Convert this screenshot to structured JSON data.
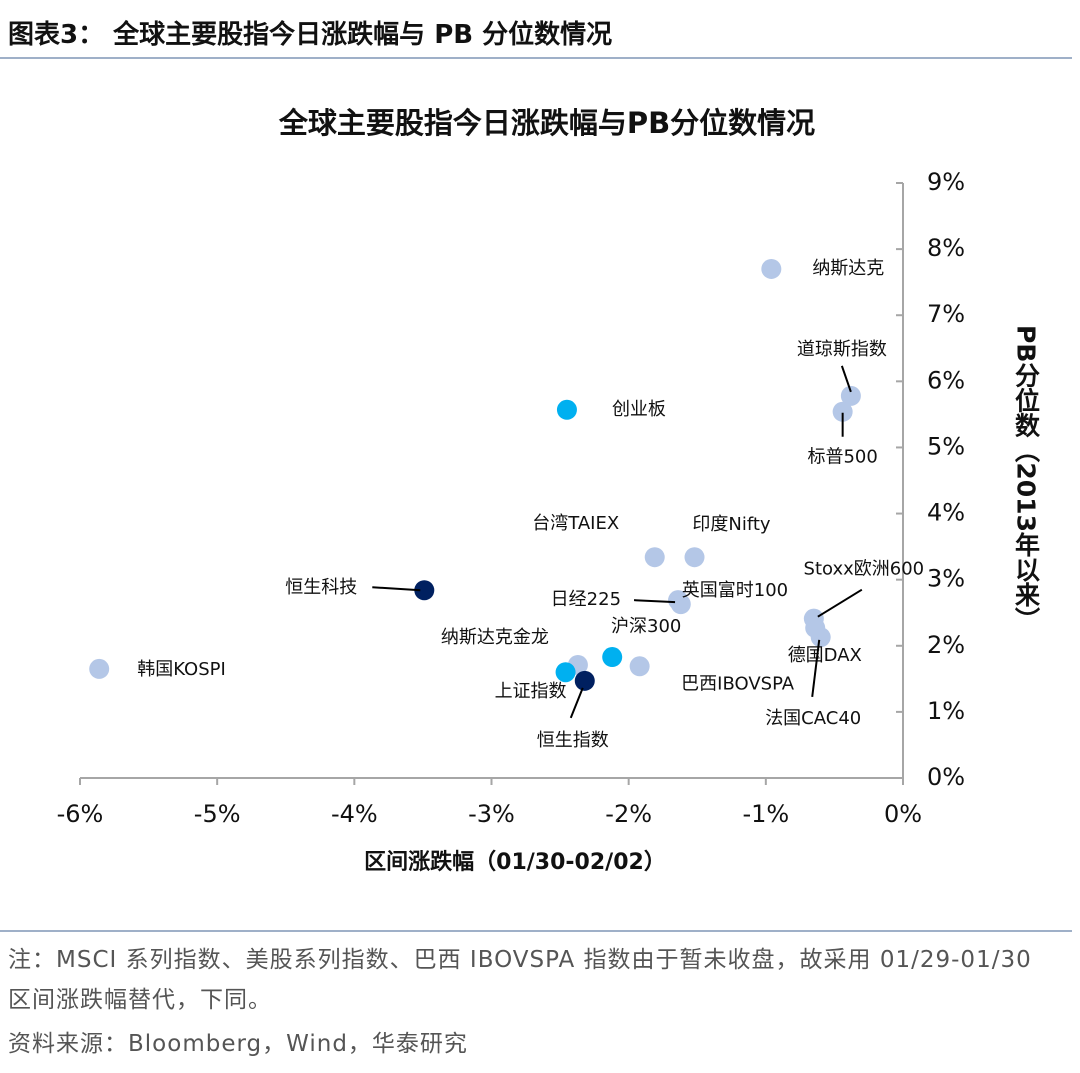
{
  "header": {
    "title": "图表3：  全球主要股指今日涨跌幅与 PB 分位数情况"
  },
  "chart_data": {
    "type": "scatter",
    "title": "全球主要股指今日涨跌幅与PB分位数情况",
    "x_label": "区间涨跌幅（01/30-02/02）",
    "y_label": "PB分位数（2013年以来）",
    "xlim": [
      -6,
      0
    ],
    "ylim": [
      0,
      9
    ],
    "xticks": [
      {
        "value": -6,
        "label": "-6%"
      },
      {
        "value": -5,
        "label": "-5%"
      },
      {
        "value": -4,
        "label": "-4%"
      },
      {
        "value": -3,
        "label": "-3%"
      },
      {
        "value": -2,
        "label": "-2%"
      },
      {
        "value": -1,
        "label": "-1%"
      },
      {
        "value": 0,
        "label": "0%"
      }
    ],
    "yticks": [
      {
        "value": 0,
        "label": "0%"
      },
      {
        "value": 1,
        "label": "1%"
      },
      {
        "value": 2,
        "label": "2%"
      },
      {
        "value": 3,
        "label": "3%"
      },
      {
        "value": 4,
        "label": "4%"
      },
      {
        "value": 5,
        "label": "5%"
      },
      {
        "value": 6,
        "label": "6%"
      },
      {
        "value": 7,
        "label": "7%"
      },
      {
        "value": 8,
        "label": "8%"
      },
      {
        "value": 9,
        "label": "9%"
      }
    ],
    "series": [
      {
        "name": "纳斯达克",
        "color": "#b4c7e7",
        "x": [
          -0.96
        ],
        "values": [
          7.7
        ]
      },
      {
        "name": "道琼斯指数",
        "color": "#b4c7e7",
        "x": [
          -0.38
        ],
        "values": [
          5.78
        ]
      },
      {
        "name": "标普500",
        "color": "#b4c7e7",
        "x": [
          -0.44
        ],
        "values": [
          5.54
        ]
      },
      {
        "name": "创业板",
        "color": "#00b0f0",
        "x": [
          -2.45
        ],
        "values": [
          5.57
        ]
      },
      {
        "name": "台湾TAIEX",
        "color": "#b4c7e7",
        "x": [
          -1.81
        ],
        "values": [
          3.34
        ]
      },
      {
        "name": "印度Nifty",
        "color": "#b4c7e7",
        "x": [
          -1.52
        ],
        "values": [
          3.34
        ]
      },
      {
        "name": "恒生科技",
        "color": "#002060",
        "x": [
          -3.49
        ],
        "values": [
          2.84
        ]
      },
      {
        "name": "英国富时100",
        "color": "#b4c7e7",
        "x": [
          -1.62
        ],
        "values": [
          2.63
        ]
      },
      {
        "name": "日经225",
        "color": "#b4c7e7",
        "x": [
          -1.64
        ],
        "values": [
          2.69
        ]
      },
      {
        "name": "Stoxx欧洲600",
        "color": "#b4c7e7",
        "x": [
          -0.65
        ],
        "values": [
          2.41
        ]
      },
      {
        "name": "德国DAX",
        "color": "#b4c7e7",
        "x": [
          -0.6
        ],
        "values": [
          2.13
        ]
      },
      {
        "name": "法国CAC40",
        "color": "#b4c7e7",
        "x": [
          -0.64
        ],
        "values": [
          2.27
        ]
      },
      {
        "name": "沪深300",
        "color": "#00b0f0",
        "x": [
          -2.12
        ],
        "values": [
          1.83
        ]
      },
      {
        "name": "纳斯达克金龙",
        "color": "#b4c7e7",
        "x": [
          -2.37
        ],
        "values": [
          1.71
        ]
      },
      {
        "name": "巴西IBOVSPA",
        "color": "#b4c7e7",
        "x": [
          -1.92
        ],
        "values": [
          1.69
        ]
      },
      {
        "name": "上证指数",
        "color": "#00b0f0",
        "x": [
          -2.46
        ],
        "values": [
          1.6
        ]
      },
      {
        "name": "恒生指数",
        "color": "#002060",
        "x": [
          -2.32
        ],
        "values": [
          1.47
        ]
      },
      {
        "name": "韩国KOSPI",
        "color": "#b4c7e7",
        "x": [
          -5.86
        ],
        "values": [
          1.65
        ]
      }
    ]
  },
  "notes": {
    "note": "注：MSCI 系列指数、美股系列指数、巴西 IBOVSPA 指数由于暂未收盘，故采用 01/29-01/30 区间涨跌幅替代，下同。",
    "source": "资料来源：Bloomberg，Wind，华泰研究"
  }
}
